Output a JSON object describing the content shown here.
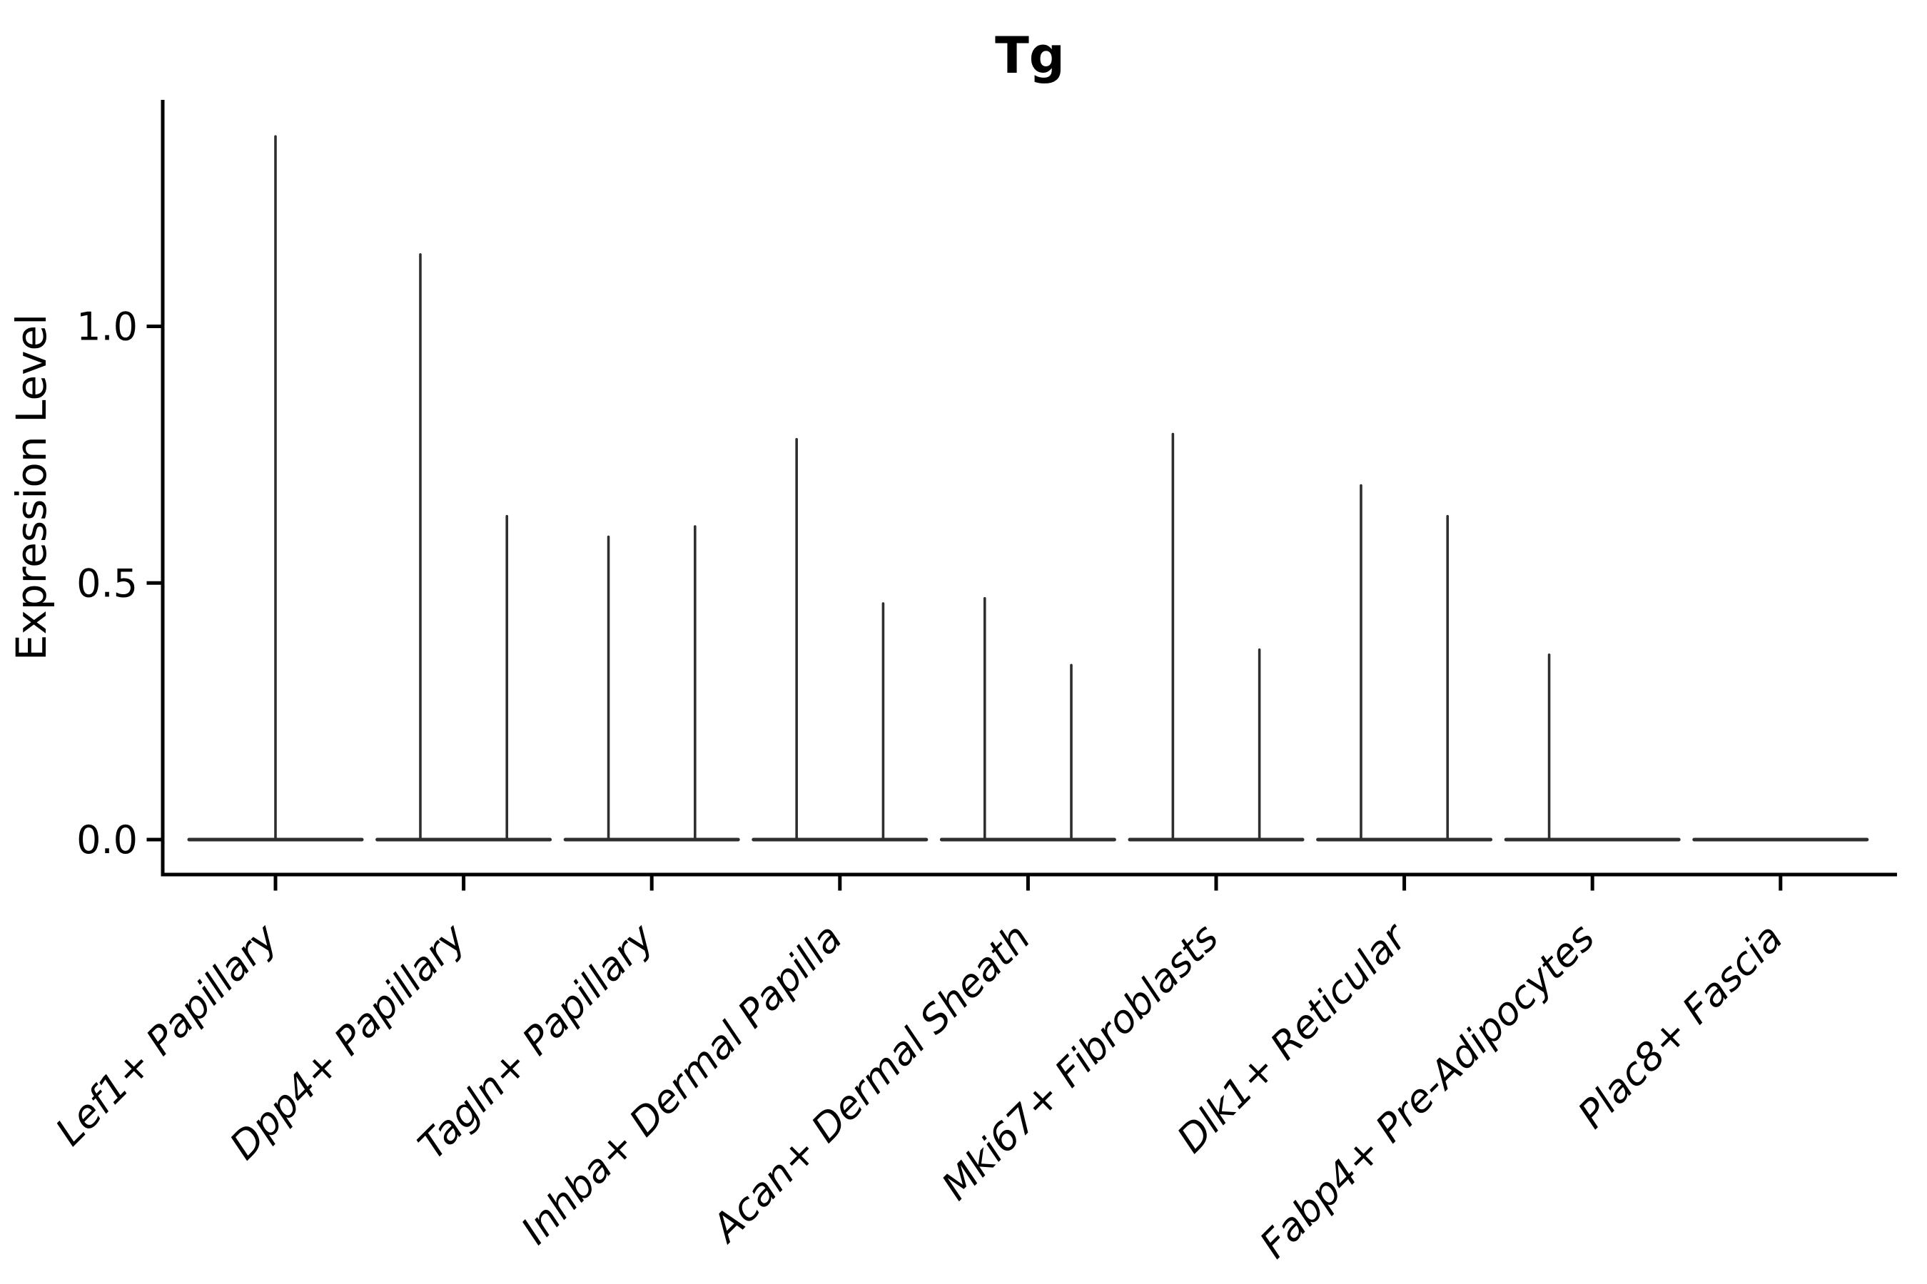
{
  "chart_data": {
    "type": "violin",
    "title": "Tg",
    "ylabel": "Expression Level",
    "xlabel": "",
    "categories": [
      "Lef1+ Papillary",
      "Dpp4+ Papillary",
      "Tagln+ Papillary",
      "Inhba+ Dermal Papilla",
      "Acan+ Dermal Sheath",
      "Mki67+ Fibroblasts",
      "Dlk1+ Reticular",
      "Fabp4+ Pre-Adipocytes",
      "Plac8+ Fascia"
    ],
    "series": [
      {
        "category": "Lef1+ Papillary",
        "violins": [
          {
            "offset": 0.0,
            "max": 1.37
          }
        ]
      },
      {
        "category": "Dpp4+ Papillary",
        "violins": [
          {
            "offset": -0.23,
            "max": 1.14
          },
          {
            "offset": 0.23,
            "max": 0.63
          }
        ]
      },
      {
        "category": "Tagln+ Papillary",
        "violins": [
          {
            "offset": -0.23,
            "max": 0.59
          },
          {
            "offset": 0.23,
            "max": 0.61
          }
        ]
      },
      {
        "category": "Inhba+ Dermal Papilla",
        "violins": [
          {
            "offset": -0.23,
            "max": 0.78
          },
          {
            "offset": 0.23,
            "max": 0.46
          }
        ]
      },
      {
        "category": "Acan+ Dermal Sheath",
        "violins": [
          {
            "offset": -0.23,
            "max": 0.47
          },
          {
            "offset": 0.23,
            "max": 0.34
          }
        ]
      },
      {
        "category": "Mki67+ Fibroblasts",
        "violins": [
          {
            "offset": -0.23,
            "max": 0.79
          },
          {
            "offset": 0.23,
            "max": 0.37
          }
        ]
      },
      {
        "category": "Dlk1+ Reticular",
        "violins": [
          {
            "offset": -0.23,
            "max": 0.69
          },
          {
            "offset": 0.23,
            "max": 0.63
          }
        ]
      },
      {
        "category": "Fabp4+ Pre-Adipocytes",
        "violins": [
          {
            "offset": -0.23,
            "max": 0.36
          },
          {
            "offset": 0.23,
            "max": 0.0
          }
        ]
      },
      {
        "category": "Plac8+ Fascia",
        "violins": [
          {
            "offset": -0.23,
            "max": 0.0
          },
          {
            "offset": 0.23,
            "max": 0.0
          }
        ]
      }
    ],
    "ytick_labels": [
      "0.0",
      "0.5",
      "1.0"
    ],
    "ytick_values": [
      0.0,
      0.5,
      1.0
    ],
    "ylim": [
      -0.07,
      1.44
    ],
    "grid": false,
    "legend_position": "none",
    "violin_shape": "needle: flat base at 0 with thin spike rising to max expression",
    "base_halfwidth_frac": 0.46,
    "x_tick_label_rotation_deg": 45,
    "x_tick_label_style": "italic",
    "colors": {
      "violin": "#2e2e2e",
      "axis": "#000000",
      "text": "#000000",
      "background": "#ffffff"
    }
  }
}
